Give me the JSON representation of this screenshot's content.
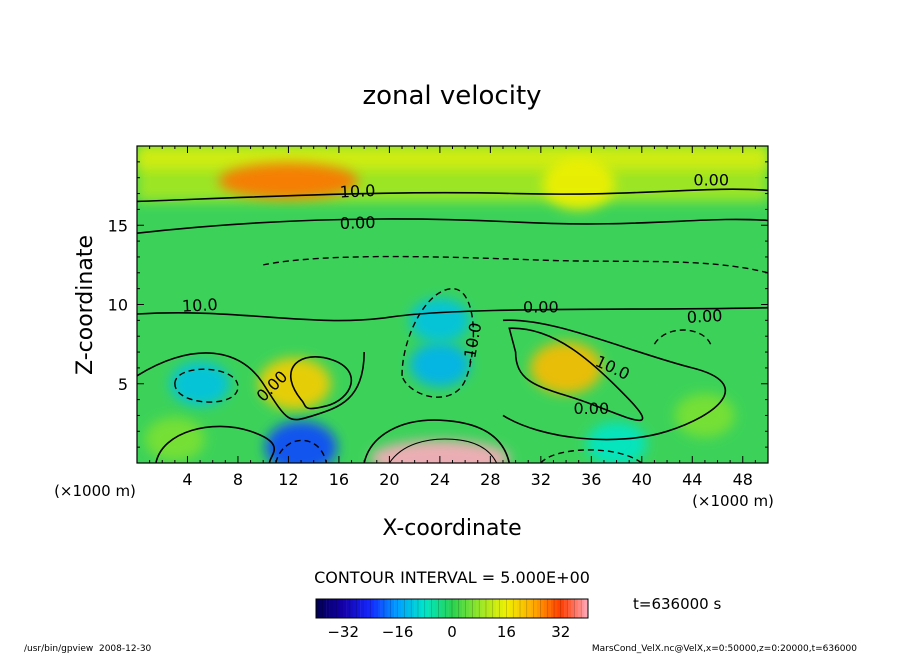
{
  "chart_data": {
    "type": "heatmap",
    "title": "zonal velocity",
    "xlabel": "X-coordinate",
    "ylabel": "Z-coordinate",
    "x_unit": "(×1000 m)",
    "y_unit": "(×1000 m)",
    "xlim": [
      0,
      50
    ],
    "ylim": [
      0,
      20
    ],
    "x_ticks": [
      "4",
      "8",
      "12",
      "16",
      "20",
      "24",
      "28",
      "32",
      "36",
      "40",
      "44",
      "48"
    ],
    "y_ticks": [
      "5",
      "10",
      "15"
    ],
    "contour_labels": [
      "10.0",
      "0.00",
      "0.00",
      "10.0",
      "0.00",
      "-10.0",
      "0.00",
      "10.0",
      "0.00",
      "0.00"
    ],
    "contour_interval_text": "CONTOUR INTERVAL = 5.000E+00",
    "colorbar": {
      "range": [
        -40,
        40
      ],
      "ticks": [
        "-32",
        "-16",
        "0",
        "16",
        "32"
      ]
    },
    "time_label": "t=636000 s",
    "features": [
      {
        "x": 12,
        "z": 17.8,
        "u": 28
      },
      {
        "x": 35,
        "z": 17.6,
        "u": 16
      },
      {
        "x": 5,
        "z": 5,
        "u": -12
      },
      {
        "x": 12.5,
        "z": 5,
        "u": 20
      },
      {
        "x": 24,
        "z": 6.2,
        "u": -14
      },
      {
        "x": 24,
        "z": 9,
        "u": -12
      },
      {
        "x": 34,
        "z": 6,
        "u": 22
      },
      {
        "x": 13,
        "z": 1,
        "u": -22
      },
      {
        "x": 24,
        "z": 0.3,
        "u": 40
      },
      {
        "x": 38,
        "z": 1.2,
        "u": -8
      },
      {
        "x": 3,
        "z": 1.5,
        "u": 6
      },
      {
        "x": 45,
        "z": 3,
        "u": 6
      }
    ]
  },
  "footer": {
    "left": "/usr/bin/gpview  2008-12-30",
    "right": "MarsCond_VelX.nc@VelX,x=0:50000,z=0:20000,t=636000"
  },
  "colors": {
    "background": "#ffffff",
    "plot_base": "#3cd25a"
  }
}
